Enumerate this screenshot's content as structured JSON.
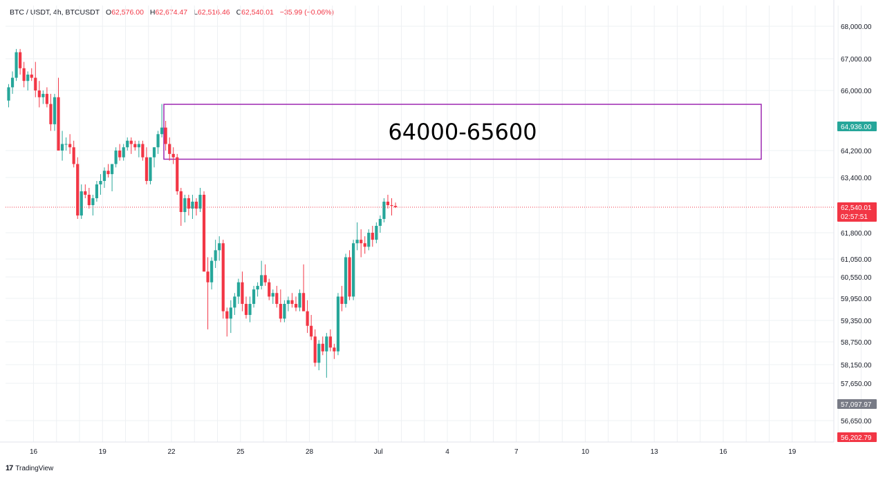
{
  "header": {
    "symbol": "BTC / USDT, 4h, BTCUSDT",
    "open_label": "O",
    "open": "62,576.00",
    "high_label": "H",
    "high": "62,674.47",
    "low_label": "L",
    "low": "62,516.46",
    "close_label": "C",
    "close": "62,540.01",
    "change": "−35.99 (−0.06%)"
  },
  "branding": {
    "logo_mark": "17",
    "logo_text": "TradingView"
  },
  "colors": {
    "up": "#26a69a",
    "down": "#f23645",
    "zone": "#9c27b0",
    "grid": "#eef0f3",
    "price_line": "#f23645"
  },
  "chart_data": {
    "type": "candlestick",
    "title": "BTC / USDT, 4h, BTCUSDT",
    "xlabel": "",
    "ylabel": "",
    "x_tick_labels": [
      "16",
      "19",
      "22",
      "25",
      "28",
      "Jul",
      "4",
      "7",
      "10",
      "13",
      "16",
      "19"
    ],
    "y_tick_labels": [
      "68,000.00",
      "67,000.00",
      "66,000.00",
      "64,200.00",
      "63,400.00",
      "61,800.00",
      "61,050.00",
      "60,550.00",
      "59,950.00",
      "59,350.00",
      "58,750.00",
      "58,150.00",
      "57,650.00",
      "56,650.00"
    ],
    "y_ticks": [
      68000,
      67000,
      66000,
      64200,
      63400,
      61800,
      61050,
      60550,
      59950,
      59350,
      58750,
      58150,
      57650,
      56650
    ],
    "price_badges": [
      {
        "label": "64,936.00",
        "value": 64936,
        "color": "#26a69a"
      },
      {
        "label": "62,540.01",
        "value": 62540.01,
        "color": "#f23645",
        "countdown": "02:57:51"
      },
      {
        "label": "57,097.97",
        "value": 57097.97,
        "color": "#787b86"
      },
      {
        "label": "56,202.79",
        "value": 56202.79,
        "color": "#f23645"
      }
    ],
    "annotation": {
      "text": "64000-65600",
      "low": 64000,
      "high": 65600,
      "from": "Jun 21",
      "to": "Jul 17"
    },
    "candles_ohlc": [
      [
        65700,
        66200,
        65500,
        66100
      ],
      [
        66100,
        66600,
        65900,
        66400
      ],
      [
        66400,
        67300,
        66300,
        67200
      ],
      [
        67200,
        67300,
        66500,
        66700
      ],
      [
        66700,
        66900,
        66100,
        66300
      ],
      [
        66300,
        66600,
        66000,
        66500
      ],
      [
        66500,
        66700,
        66300,
        66400
      ],
      [
        66400,
        66900,
        65800,
        66000
      ],
      [
        66000,
        66300,
        65500,
        65800
      ],
      [
        65800,
        66000,
        65600,
        65900
      ],
      [
        65900,
        66100,
        65500,
        65600
      ],
      [
        65600,
        65900,
        64800,
        65000
      ],
      [
        65000,
        65900,
        64800,
        65800
      ],
      [
        65800,
        66400,
        64200,
        64200
      ],
      [
        64200,
        64800,
        63900,
        64400
      ],
      [
        64400,
        64600,
        64200,
        64400
      ],
      [
        64400,
        64700,
        64100,
        64300
      ],
      [
        64300,
        64500,
        63700,
        63800
      ],
      [
        63800,
        64000,
        62200,
        62300
      ],
      [
        62300,
        63200,
        62200,
        63000
      ],
      [
        63000,
        63200,
        62800,
        62900
      ],
      [
        62900,
        63100,
        62500,
        62600
      ],
      [
        62600,
        62900,
        62300,
        62800
      ],
      [
        62800,
        63300,
        62700,
        63200
      ],
      [
        63200,
        63500,
        62900,
        63300
      ],
      [
        63300,
        63700,
        63100,
        63600
      ],
      [
        63600,
        63800,
        63400,
        63500
      ],
      [
        63500,
        63800,
        63000,
        63800
      ],
      [
        63800,
        64300,
        63700,
        64200
      ],
      [
        64200,
        64400,
        63900,
        64000
      ],
      [
        64000,
        64400,
        63900,
        64300
      ],
      [
        64300,
        64600,
        64200,
        64500
      ],
      [
        64500,
        64600,
        64100,
        64400
      ],
      [
        64400,
        64500,
        64200,
        64300
      ],
      [
        64300,
        64500,
        64000,
        64400
      ],
      [
        64400,
        64500,
        63900,
        64000
      ],
      [
        64000,
        64300,
        63200,
        63300
      ],
      [
        63300,
        64000,
        63200,
        64000
      ],
      [
        64000,
        64300,
        63700,
        64300
      ],
      [
        64300,
        64800,
        64100,
        64700
      ],
      [
        64700,
        65600,
        64600,
        64900
      ],
      [
        64900,
        65100,
        64200,
        64400
      ],
      [
        64400,
        64600,
        63900,
        64100
      ],
      [
        64100,
        64300,
        63800,
        64000
      ],
      [
        64000,
        64100,
        62900,
        63000
      ],
      [
        63000,
        63100,
        62000,
        62400
      ],
      [
        62400,
        62900,
        62100,
        62800
      ],
      [
        62800,
        62900,
        62300,
        62500
      ],
      [
        62500,
        62900,
        62200,
        62700
      ],
      [
        62700,
        62800,
        62300,
        62500
      ],
      [
        62500,
        63100,
        62400,
        62900
      ],
      [
        62900,
        63000,
        60700,
        60700
      ],
      [
        60700,
        61100,
        59100,
        60400
      ],
      [
        60400,
        61100,
        60200,
        61000
      ],
      [
        61000,
        61600,
        60800,
        61300
      ],
      [
        61300,
        61700,
        61000,
        61500
      ],
      [
        61500,
        61600,
        59400,
        59600
      ],
      [
        59600,
        59700,
        58900,
        59400
      ],
      [
        59400,
        59900,
        59000,
        59700
      ],
      [
        59700,
        60100,
        59500,
        60000
      ],
      [
        60000,
        60500,
        59800,
        60400
      ],
      [
        60400,
        60700,
        59600,
        59800
      ],
      [
        59800,
        60000,
        59400,
        59500
      ],
      [
        59500,
        60000,
        59300,
        59800
      ],
      [
        59800,
        60300,
        59700,
        60200
      ],
      [
        60200,
        60400,
        60000,
        60300
      ],
      [
        60300,
        61000,
        60200,
        60600
      ],
      [
        60600,
        60900,
        60300,
        60400
      ],
      [
        60400,
        60500,
        59900,
        60000
      ],
      [
        60000,
        60200,
        59800,
        60100
      ],
      [
        60100,
        60300,
        59700,
        59800
      ],
      [
        59800,
        60200,
        59300,
        59400
      ],
      [
        59400,
        59900,
        59300,
        59800
      ],
      [
        59800,
        60000,
        59600,
        59900
      ],
      [
        59900,
        60100,
        59700,
        59800
      ],
      [
        59800,
        60000,
        59600,
        59700
      ],
      [
        59700,
        60200,
        59600,
        60100
      ],
      [
        60100,
        60900,
        59700,
        59600
      ],
      [
        59600,
        59900,
        59000,
        59200
      ],
      [
        59200,
        59500,
        58800,
        58900
      ],
      [
        58900,
        59100,
        58100,
        58200
      ],
      [
        58200,
        58800,
        58000,
        58700
      ],
      [
        58700,
        58900,
        58400,
        58500
      ],
      [
        58500,
        59000,
        57800,
        58900
      ],
      [
        58900,
        59100,
        58500,
        58600
      ],
      [
        58600,
        58700,
        58300,
        58500
      ],
      [
        58500,
        60100,
        58400,
        60000
      ],
      [
        60000,
        60300,
        59600,
        59800
      ],
      [
        59800,
        61200,
        59700,
        61100
      ],
      [
        61100,
        61300,
        59900,
        60000
      ],
      [
        60000,
        61600,
        59900,
        61500
      ],
      [
        61500,
        62100,
        61300,
        61600
      ],
      [
        61600,
        61900,
        61100,
        61500
      ],
      [
        61500,
        61700,
        61200,
        61400
      ],
      [
        61400,
        61900,
        61300,
        61800
      ],
      [
        61800,
        62000,
        61400,
        61600
      ],
      [
        61600,
        62100,
        61500,
        62000
      ],
      [
        62000,
        62300,
        61800,
        62200
      ],
      [
        62200,
        62800,
        62100,
        62700
      ],
      [
        62700,
        62900,
        62500,
        62600
      ],
      [
        62600,
        62800,
        62300,
        62576
      ],
      [
        62576,
        62674.47,
        62516.46,
        62540.01
      ]
    ],
    "candle_dates": {
      "first": "Jun 15",
      "interval_hours": 4
    }
  }
}
